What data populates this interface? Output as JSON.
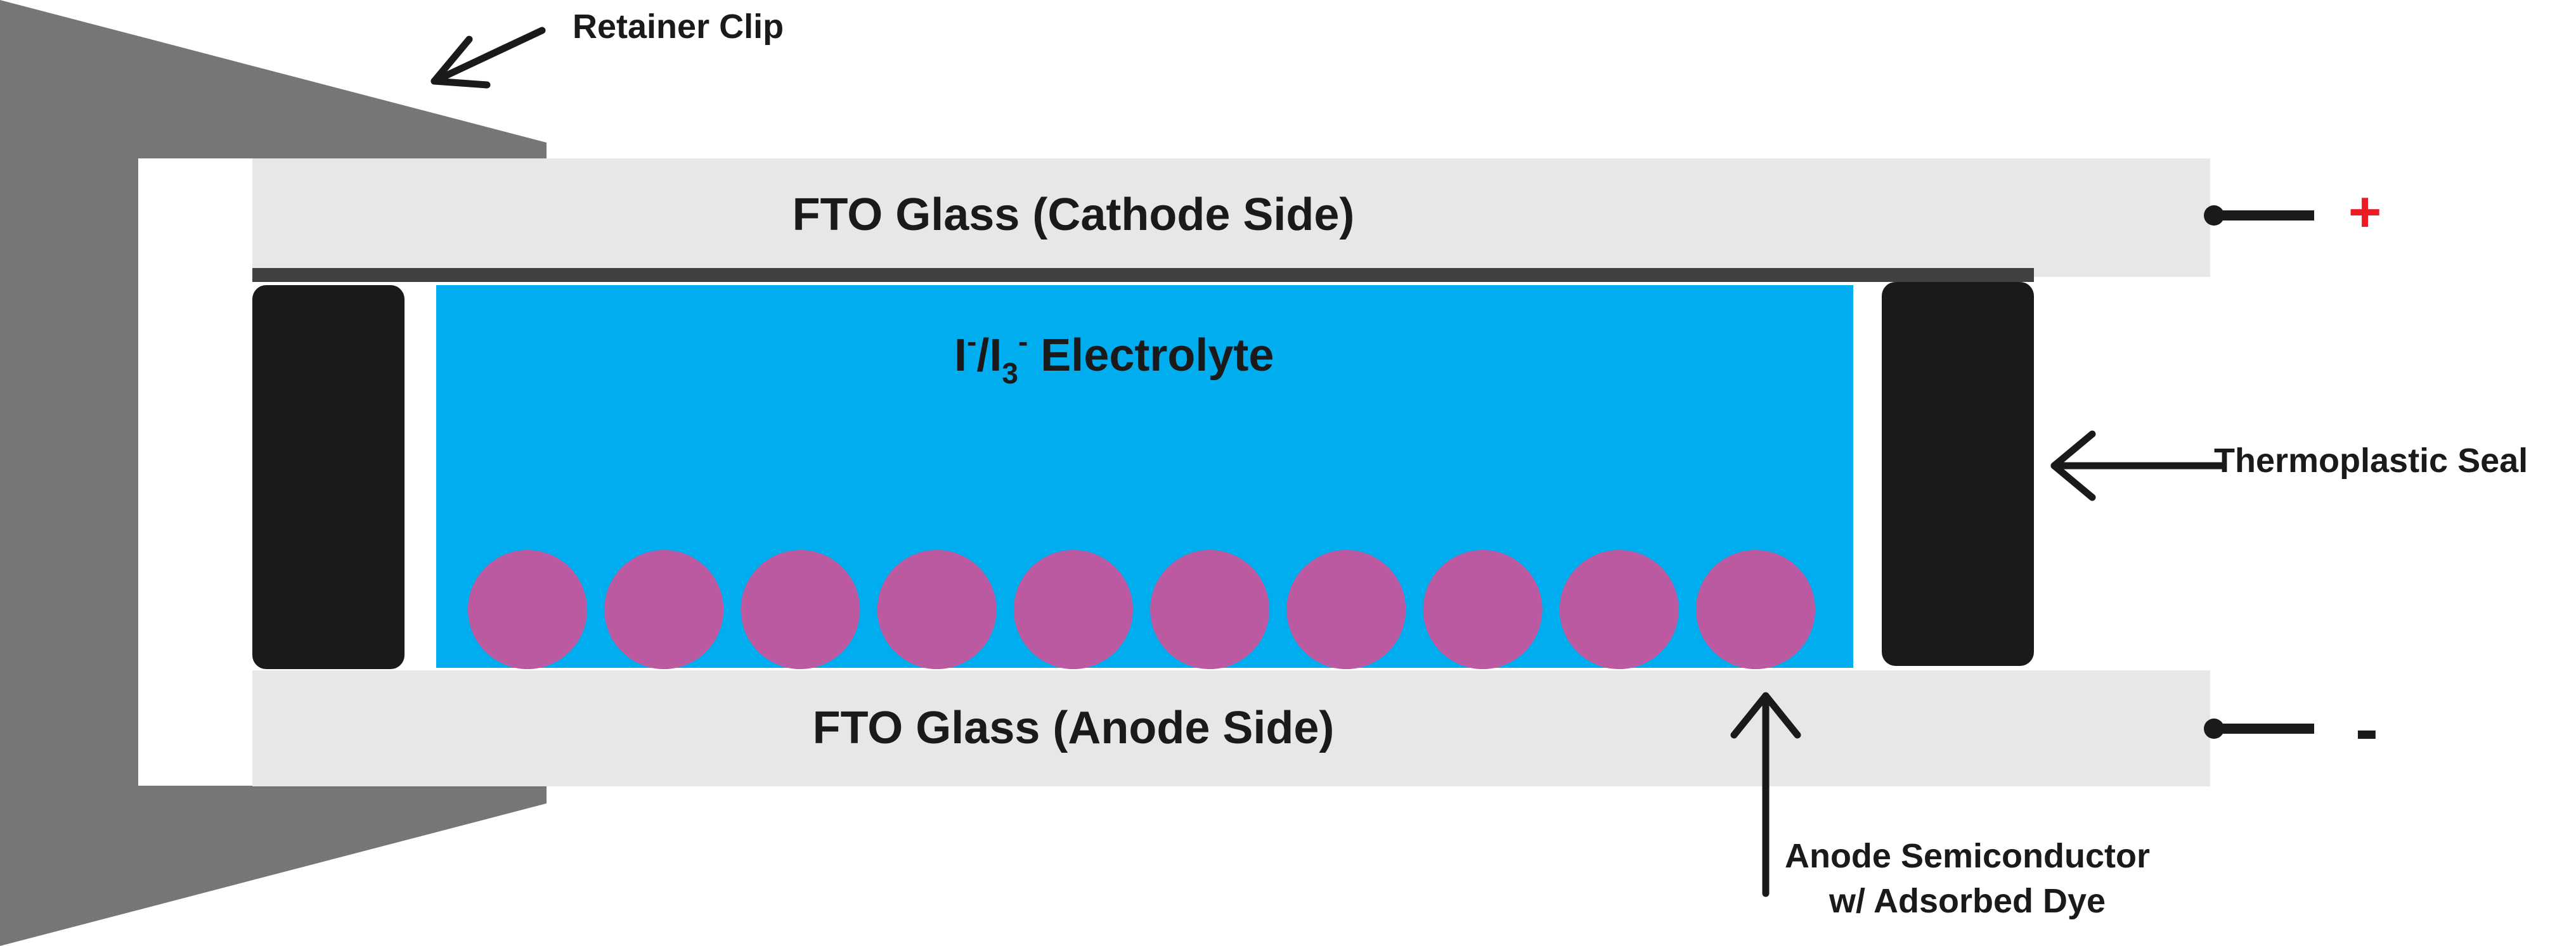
{
  "labels": {
    "retainer_clip": "Retainer Clip",
    "cathode_glass": "FTO Glass (Cathode Side)",
    "anode_glass": "FTO Glass (Anode Side)",
    "electrolyte": {
      "i": "I",
      "sup_minus_1": "-",
      "slash_i": "/I",
      "sub_3": "3",
      "sup_minus_2": "-",
      "word": " Electrolyte"
    },
    "thermoplastic_seal": "Thermoplastic Seal",
    "anode_semiconductor_line1": "Anode Semiconductor",
    "anode_semiconductor_line2": "w/ Adsorbed Dye",
    "positive_terminal": "+",
    "negative_terminal": "-"
  },
  "colors": {
    "clip": "#767676",
    "glass": "#e6e7e8",
    "cathode_layer": "#414042",
    "seal": "#1a1a1a",
    "electrolyte": "#00adee",
    "dye_particle": "#bb5aa0",
    "positive": "#ed1c24",
    "text": "#1a1a1a"
  },
  "dye_particle_count": 10
}
